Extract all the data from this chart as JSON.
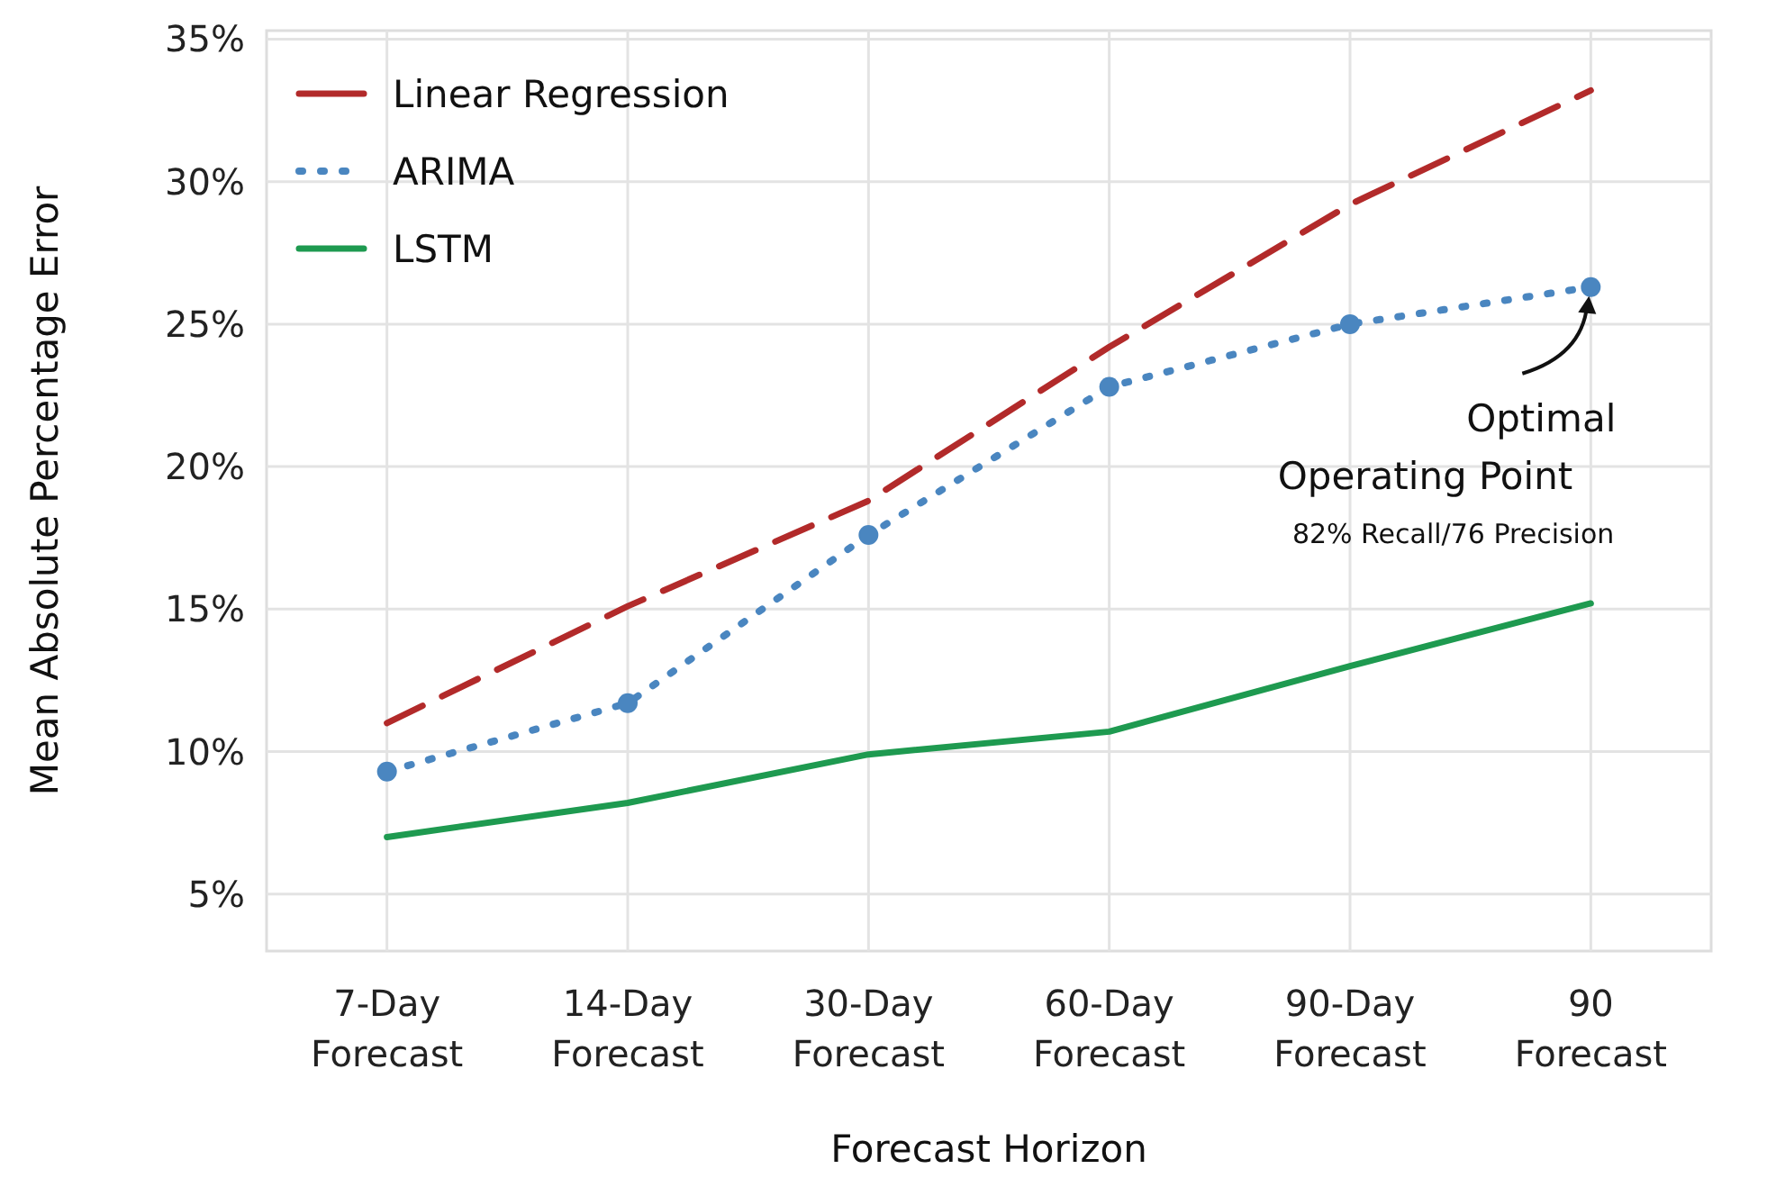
{
  "chart_data": {
    "type": "line",
    "xlabel": "Forecast Horizon",
    "ylabel": "Mean Absolute Percentage Error",
    "categories": [
      "7-Day Forecast",
      "14-Day Forecast",
      "30-Day Forecast",
      "60-Day Forecast",
      "90-Day Forecast",
      "90 Forecast"
    ],
    "ylim": [
      3,
      35.3
    ],
    "yticks": [
      {
        "value": 5,
        "label": "5%"
      },
      {
        "value": 10,
        "label": "10%"
      },
      {
        "value": 15,
        "label": "15%"
      },
      {
        "value": 20,
        "label": "20%"
      },
      {
        "value": 25,
        "label": "25%"
      },
      {
        "value": 30,
        "label": "30%"
      },
      {
        "value": 35,
        "label": "35%"
      }
    ],
    "grid": true,
    "legend": "top left",
    "series": [
      {
        "name": "Linear Regression",
        "color": "#b22a2a",
        "line_style": "dashed",
        "marker": "none",
        "values": [
          11.0,
          15.1,
          18.8,
          24.2,
          29.2,
          33.2
        ]
      },
      {
        "name": "ARIMA",
        "color": "#4a86c0",
        "line_style": "dotted",
        "marker": "circle",
        "values": [
          9.3,
          11.7,
          17.6,
          22.8,
          25.0,
          26.3
        ]
      },
      {
        "name": "LSTM",
        "color": "#1e9a50",
        "line_style": "solid",
        "marker": "none",
        "values": [
          7.0,
          8.2,
          9.9,
          10.7,
          13.0,
          15.2
        ]
      }
    ],
    "annotations": [
      {
        "text": "Optimal Operating Point",
        "x": "90 Forecast",
        "y": 26.3
      },
      "82% Recall/76 Precision"
    ]
  }
}
